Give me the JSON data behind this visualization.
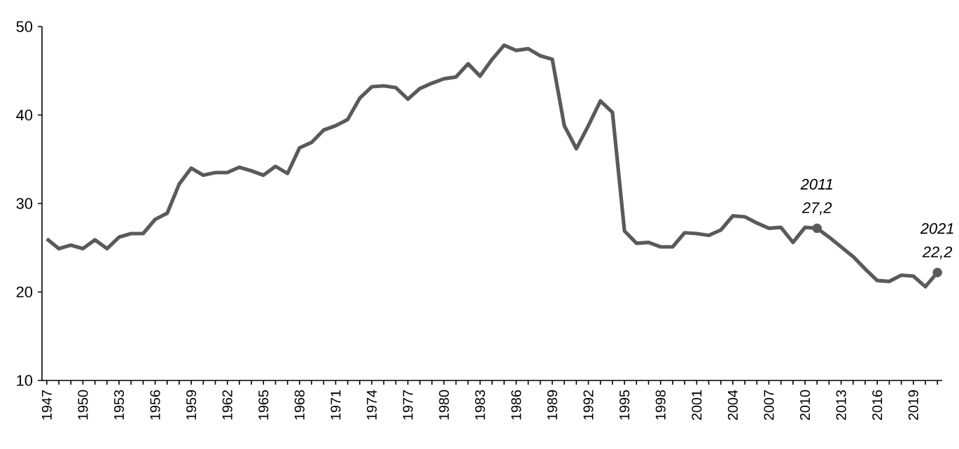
{
  "chart_data": {
    "type": "line",
    "x": [
      1947,
      1948,
      1949,
      1950,
      1951,
      1952,
      1953,
      1954,
      1955,
      1956,
      1957,
      1958,
      1959,
      1960,
      1961,
      1962,
      1963,
      1964,
      1965,
      1966,
      1967,
      1968,
      1969,
      1970,
      1971,
      1972,
      1973,
      1974,
      1975,
      1976,
      1977,
      1978,
      1979,
      1980,
      1981,
      1982,
      1983,
      1984,
      1985,
      1986,
      1987,
      1988,
      1989,
      1990,
      1991,
      1992,
      1993,
      1994,
      1995,
      1996,
      1997,
      1998,
      1999,
      2000,
      2001,
      2002,
      2003,
      2004,
      2005,
      2006,
      2007,
      2008,
      2009,
      2010,
      2011,
      2012,
      2013,
      2014,
      2015,
      2016,
      2017,
      2018,
      2019,
      2020,
      2021
    ],
    "series": [
      {
        "color": "#5a5a5a",
        "marker": "none",
        "values": [
          26,
          24.9,
          25.3,
          24.9,
          25.9,
          24.9,
          26.2,
          26.6,
          26.6,
          28.2,
          28.9,
          32.2,
          34,
          33.2,
          33.5,
          33.5,
          34.1,
          33.7,
          33.2,
          34.2,
          33.4,
          36.3,
          36.9,
          38.3,
          38.8,
          39.5,
          41.9,
          43.2,
          43.3,
          43.1,
          41.8,
          43,
          43.6,
          44.1,
          44.3,
          45.8,
          44.4,
          46.3,
          47.9,
          47.3,
          47.5,
          46.7,
          46.3,
          38.8,
          36.2,
          38.8,
          41.6,
          40.3,
          26.9,
          25.5,
          25.6,
          25.1,
          25.1,
          26.7,
          26.6,
          26.4,
          27,
          28.6,
          28.5,
          27.8,
          27.2,
          27.3,
          25.6,
          27.3,
          27.2,
          26.2,
          25.1,
          24,
          22.6,
          21.3,
          21.2,
          21.9,
          21.8,
          20.6,
          22.2
        ]
      },
      {
        "type": "scatter",
        "color": "#5a5a5a",
        "marker": "circle",
        "x": [
          2011,
          2021
        ],
        "values": [
          27.2,
          22.2
        ],
        "value_labels": [
          "27,2",
          "22,2"
        ]
      }
    ],
    "annotations": [
      "2011",
      "2021"
    ],
    "xlim": [
      1946.6,
      2021.4
    ],
    "ylim": [
      10,
      50
    ],
    "xticks": [
      1947,
      {
        "value": 1948,
        "label": null
      },
      {
        "value": 1949,
        "label": null
      },
      1950,
      {
        "value": 1951,
        "label": null
      },
      {
        "value": 1952,
        "label": null
      },
      1953,
      {
        "value": 1954,
        "label": null
      },
      {
        "value": 1955,
        "label": null
      },
      1956,
      {
        "value": 1957,
        "label": null
      },
      {
        "value": 1958,
        "label": null
      },
      1959,
      {
        "value": 1960,
        "label": null
      },
      {
        "value": 1961,
        "label": null
      },
      1962,
      {
        "value": 1963,
        "label": null
      },
      {
        "value": 1964,
        "label": null
      },
      1965,
      {
        "value": 1966,
        "label": null
      },
      {
        "value": 1967,
        "label": null
      },
      1968,
      {
        "value": 1969,
        "label": null
      },
      {
        "value": 1970,
        "label": null
      },
      1971,
      {
        "value": 1972,
        "label": null
      },
      {
        "value": 1973,
        "label": null
      },
      1974,
      {
        "value": 1975,
        "label": null
      },
      {
        "value": 1976,
        "label": null
      },
      1977,
      {
        "value": 1978,
        "label": null
      },
      {
        "value": 1979,
        "label": null
      },
      1980,
      {
        "value": 1981,
        "label": null
      },
      {
        "value": 1982,
        "label": null
      },
      1983,
      {
        "value": 1984,
        "label": null
      },
      {
        "value": 1985,
        "label": null
      },
      1986,
      {
        "value": 1987,
        "label": null
      },
      {
        "value": 1988,
        "label": null
      },
      1989,
      {
        "value": 1990,
        "label": null
      },
      {
        "value": 1991,
        "label": null
      },
      1992,
      {
        "value": 1993,
        "label": null
      },
      {
        "value": 1994,
        "label": null
      },
      1995,
      {
        "value": 1996,
        "label": null
      },
      {
        "value": 1997,
        "label": null
      },
      1998,
      {
        "value": 1999,
        "label": null
      },
      {
        "value": 2000,
        "label": null
      },
      2001,
      {
        "value": 2002,
        "label": null
      },
      {
        "value": 2003,
        "label": null
      },
      2004,
      {
        "value": 2005,
        "label": null
      },
      {
        "value": 2006,
        "label": null
      },
      2007,
      {
        "value": 2008,
        "label": null
      },
      {
        "value": 2009,
        "label": null
      },
      2010,
      {
        "value": 2011,
        "label": null
      },
      {
        "value": 2012,
        "label": null
      },
      2013,
      {
        "value": 2014,
        "label": null
      },
      {
        "value": 2015,
        "label": null
      },
      2016,
      {
        "value": 2017,
        "label": null
      },
      {
        "value": 2018,
        "label": null
      },
      2019,
      {
        "value": 2020,
        "label": null
      },
      {
        "value": 2021,
        "label": null
      }
    ],
    "yticks": [
      10,
      20,
      30,
      40,
      50
    ],
    "line_style": "solid"
  }
}
